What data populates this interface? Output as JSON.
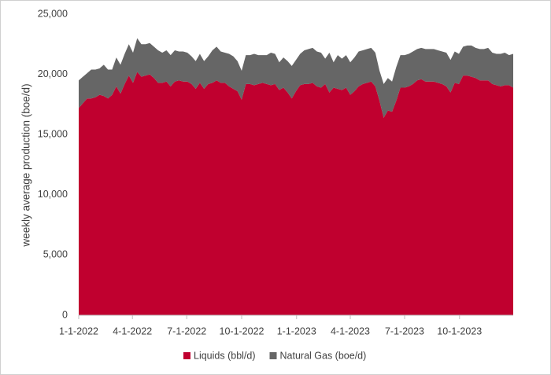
{
  "chart_data": {
    "type": "stacked-area",
    "y_label": "weekly average production (boe/d)",
    "x": [
      "1-1-2022",
      "1-8-2022",
      "1-15-2022",
      "1-22-2022",
      "1-29-2022",
      "2-5-2022",
      "2-12-2022",
      "2-19-2022",
      "2-26-2022",
      "3-5-2022",
      "3-12-2022",
      "3-19-2022",
      "3-26-2022",
      "4-2-2022",
      "4-9-2022",
      "4-16-2022",
      "4-23-2022",
      "4-30-2022",
      "5-7-2022",
      "5-14-2022",
      "5-21-2022",
      "5-28-2022",
      "6-4-2022",
      "6-11-2022",
      "6-18-2022",
      "6-25-2022",
      "7-2-2022",
      "7-9-2022",
      "7-16-2022",
      "7-23-2022",
      "7-30-2022",
      "8-6-2022",
      "8-13-2022",
      "8-20-2022",
      "8-27-2022",
      "9-3-2022",
      "9-10-2022",
      "9-17-2022",
      "9-24-2022",
      "10-1-2022",
      "10-8-2022",
      "10-15-2022",
      "10-22-2022",
      "10-29-2022",
      "11-5-2022",
      "11-12-2022",
      "11-19-2022",
      "11-26-2022",
      "12-3-2022",
      "12-10-2022",
      "12-17-2022",
      "12-24-2022",
      "12-31-2022",
      "1-7-2023",
      "1-14-2023",
      "1-21-2023",
      "1-28-2023",
      "2-4-2023",
      "2-11-2023",
      "2-18-2023",
      "2-25-2023",
      "3-4-2023",
      "3-11-2023",
      "3-18-2023",
      "3-25-2023",
      "4-1-2023",
      "4-8-2023",
      "4-15-2023",
      "4-22-2023",
      "4-29-2023",
      "5-6-2023",
      "5-13-2023",
      "5-20-2023",
      "5-27-2023",
      "6-3-2023",
      "6-10-2023",
      "6-17-2023",
      "6-24-2023",
      "7-1-2023",
      "7-8-2023",
      "7-15-2023",
      "7-22-2023",
      "7-29-2023",
      "8-5-2023",
      "8-12-2023",
      "8-19-2023",
      "8-26-2023",
      "9-2-2023",
      "9-9-2023",
      "9-16-2023",
      "9-23-2023",
      "9-30-2023",
      "10-7-2023",
      "10-14-2023",
      "10-21-2023",
      "10-28-2023",
      "11-4-2023",
      "11-11-2023",
      "11-18-2023",
      "11-25-2023",
      "12-2-2023",
      "12-9-2023",
      "12-16-2023",
      "12-23-2023",
      "12-30-2023"
    ],
    "series": [
      {
        "name": "Liquids (bbl/d)",
        "color": "#c0002f",
        "values": [
          17200,
          17600,
          18000,
          18000,
          18100,
          18300,
          18200,
          18000,
          18300,
          19000,
          18400,
          19200,
          19900,
          19300,
          20200,
          19800,
          19900,
          20000,
          19700,
          19300,
          19300,
          19400,
          19000,
          19400,
          19500,
          19400,
          19400,
          19200,
          18800,
          19300,
          18800,
          19200,
          19300,
          19500,
          19300,
          19300,
          19000,
          18800,
          18600,
          17900,
          19200,
          19200,
          19100,
          19200,
          19300,
          19200,
          19100,
          19200,
          18700,
          18900,
          18500,
          18000,
          18600,
          19100,
          19200,
          19200,
          19300,
          19000,
          18900,
          19200,
          18500,
          18900,
          18800,
          18700,
          18900,
          18300,
          18600,
          19000,
          19200,
          19300,
          19400,
          19000,
          17800,
          16400,
          17000,
          16900,
          17800,
          18900,
          18900,
          19000,
          19200,
          19500,
          19600,
          19400,
          19400,
          19400,
          19300,
          19200,
          19000,
          18500,
          19300,
          19200,
          19900,
          19900,
          19800,
          19700,
          19500,
          19500,
          19500,
          19200,
          19100,
          19000,
          19100,
          19100,
          18900
        ]
      },
      {
        "name": "Natural Gas (boe/d)",
        "color": "#666666",
        "values": [
          2300,
          2200,
          2100,
          2400,
          2300,
          2200,
          2600,
          2400,
          2100,
          2400,
          2400,
          2500,
          2600,
          2500,
          2800,
          2700,
          2600,
          2600,
          2600,
          2700,
          2500,
          2600,
          2600,
          2600,
          2400,
          2500,
          2400,
          2300,
          2300,
          2400,
          2300,
          2300,
          2700,
          2800,
          2600,
          2500,
          2700,
          2700,
          2500,
          2400,
          2400,
          2400,
          2600,
          2400,
          2300,
          2400,
          2700,
          2500,
          2300,
          2500,
          2600,
          2700,
          2600,
          2600,
          2800,
          2900,
          2900,
          2900,
          2900,
          2100,
          3300,
          2100,
          2800,
          2600,
          2700,
          2700,
          2800,
          2900,
          2800,
          2800,
          2800,
          2800,
          2500,
          2800,
          2700,
          2500,
          2800,
          2700,
          2700,
          2700,
          2700,
          2600,
          2600,
          2700,
          2700,
          2700,
          2700,
          2700,
          2800,
          2700,
          2600,
          2500,
          2400,
          2500,
          2600,
          2500,
          2600,
          2600,
          2700,
          2600,
          2600,
          2700,
          2700,
          2500,
          2800
        ]
      }
    ],
    "xlim": [
      "1-1-2022",
      "12-30-2023"
    ],
    "xticks": [
      "1-1-2022",
      "4-1-2022",
      "7-1-2022",
      "10-1-2022",
      "1-1-2023",
      "4-1-2023",
      "7-1-2023",
      "10-1-2023"
    ],
    "ylim": [
      0,
      25000
    ],
    "yticks": [
      0,
      {
        "value": 5000,
        "label": "5,000"
      },
      {
        "value": 10000,
        "label": "10,000"
      },
      {
        "value": 15000,
        "label": "15,000"
      },
      {
        "value": 20000,
        "label": "20,000"
      },
      {
        "value": 25000,
        "label": "25,000"
      }
    ],
    "grid": false,
    "legend": "bottom"
  }
}
